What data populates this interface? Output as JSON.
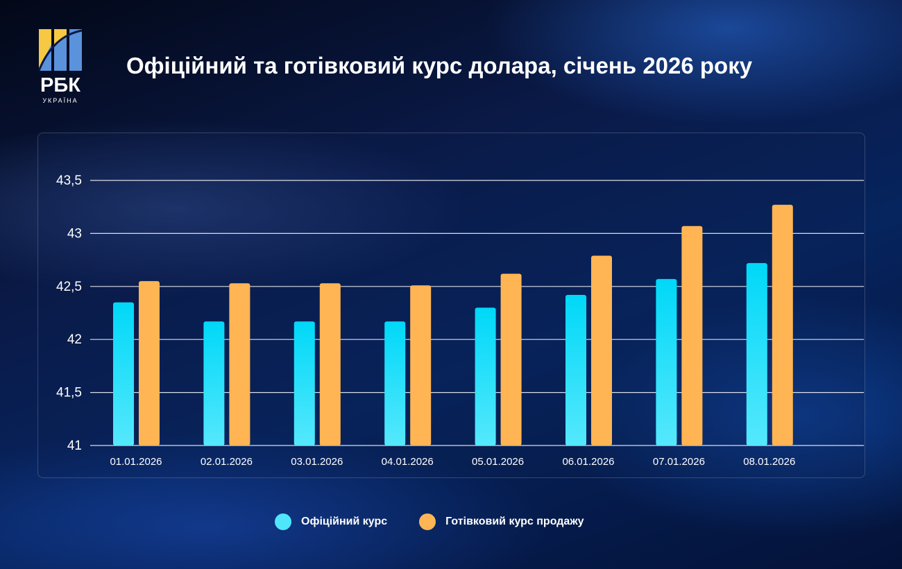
{
  "title": "Офіційний та готівковий курс долара, січень 2026 року",
  "logo": {
    "text": "РБК",
    "subtext": "УКРАЇНА"
  },
  "colors": {
    "official": "#1fd8f5",
    "cash": "#ffb554",
    "grid": "#ffffff"
  },
  "chart_data": {
    "type": "bar",
    "title": "Офіційний та готівковий курс долара, січень 2026 року",
    "categories": [
      "01.01.2026",
      "02.01.2026",
      "03.01.2026",
      "04.01.2026",
      "05.01.2026",
      "06.01.2026",
      "07.01.2026",
      "08.01.2026"
    ],
    "series": [
      {
        "name": "Офіційний курс",
        "values": [
          42.35,
          42.17,
          42.17,
          42.17,
          42.3,
          42.42,
          42.57,
          42.72
        ]
      },
      {
        "name": "Готівковий курс продажу",
        "values": [
          42.55,
          42.53,
          42.53,
          42.51,
          42.62,
          42.79,
          43.07,
          43.27
        ]
      }
    ],
    "ylim": [
      41,
      43.5
    ],
    "yticks": [
      "41",
      "41,5",
      "42",
      "42,5",
      "43",
      "43,5"
    ],
    "grid": true,
    "legend": "bottom"
  }
}
